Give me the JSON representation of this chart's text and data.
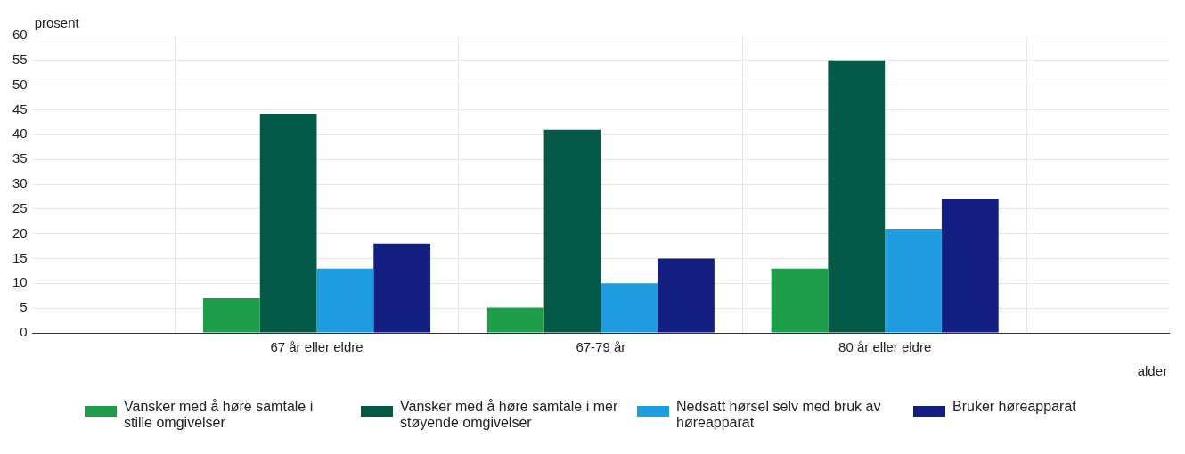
{
  "chart_data": {
    "type": "bar",
    "xlabel": "alder",
    "ylabel": "prosent",
    "categories": [
      "67 år eller eldre",
      "67-79 år",
      "80 år eller eldre"
    ],
    "series": [
      {
        "name": "Vansker med å høre samtale i stille omgivelser",
        "color": "#1e9e4a",
        "values": [
          7,
          5.1,
          13
        ]
      },
      {
        "name": "Vansker med å høre samtale i mer støyende omgivelser",
        "color": "#055a47",
        "values": [
          44.2,
          41,
          55
        ]
      },
      {
        "name": "Nedsatt hørsel selv med bruk av høreapparat",
        "color": "#1f9de0",
        "values": [
          13,
          10,
          21
        ]
      },
      {
        "name": "Bruker høreapparat",
        "color": "#121f80",
        "values": [
          18,
          15,
          27
        ]
      }
    ],
    "ylim": [
      0,
      60
    ],
    "yticks": [
      0,
      5,
      10,
      15,
      20,
      25,
      30,
      35,
      40,
      45,
      50,
      55,
      60
    ],
    "grid": true,
    "legend": "bottom"
  }
}
